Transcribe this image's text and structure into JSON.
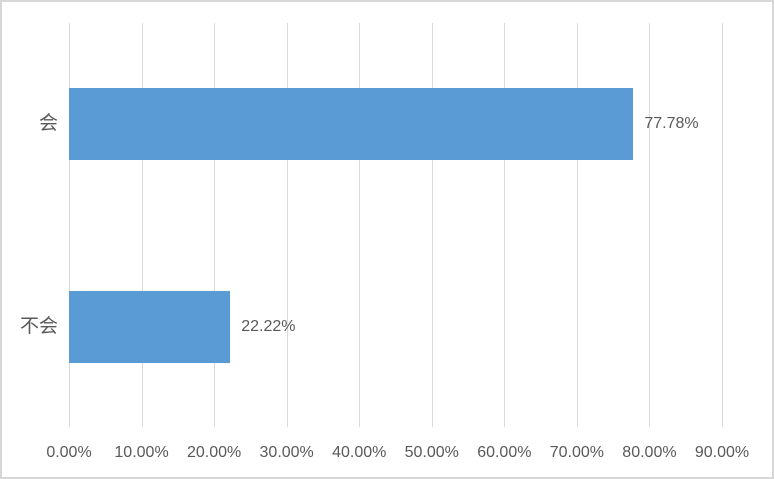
{
  "chart_data": {
    "type": "bar",
    "orientation": "horizontal",
    "title": "",
    "xlabel": "",
    "ylabel": "",
    "categories": [
      "会",
      "不会"
    ],
    "values": [
      77.78,
      22.22
    ],
    "value_labels": [
      "77.78%",
      "22.22%"
    ],
    "xlim": [
      0,
      90
    ],
    "x_tick_values": [
      0,
      10,
      20,
      30,
      40,
      50,
      60,
      70,
      80,
      90
    ],
    "x_tick_labels": [
      "0.00%",
      "10.00%",
      "20.00%",
      "30.00%",
      "40.00%",
      "50.00%",
      "60.00%",
      "70.00%",
      "80.00%",
      "90.00%"
    ],
    "grid": "vertical",
    "legend": "none",
    "colors": {
      "bar": "#5b9bd5",
      "gridline": "#d9d9d9",
      "text": "#595959",
      "chart_border": "#d7d7d7",
      "background": "#ffffff"
    }
  }
}
